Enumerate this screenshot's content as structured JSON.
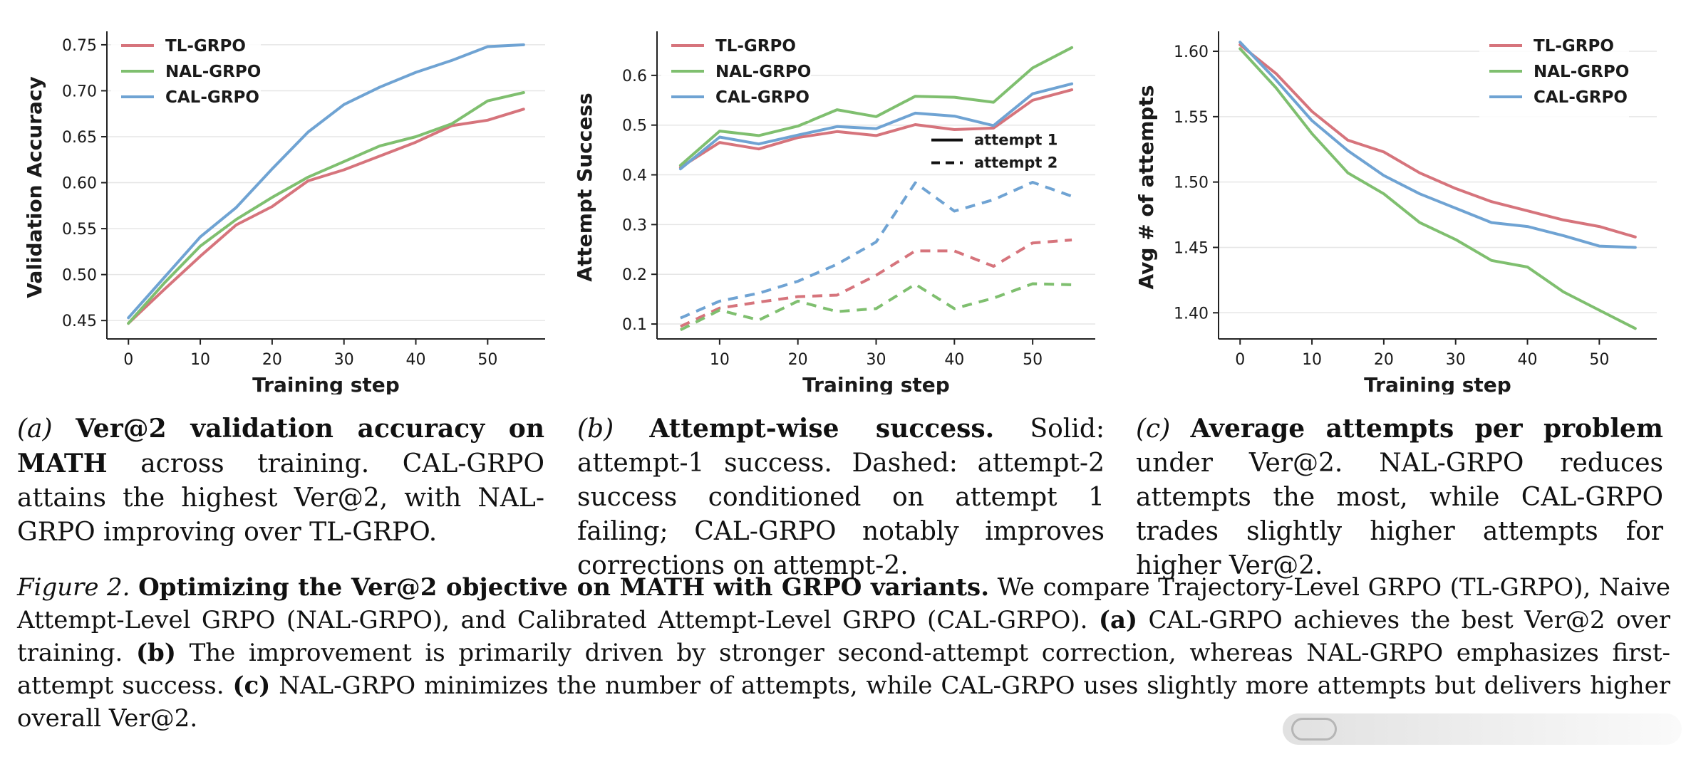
{
  "chart_data": [
    {
      "type": "line",
      "ylabel": "Validation Accuracy",
      "xlabel": "Training step",
      "xlim": [
        -3,
        58
      ],
      "ylim": [
        0.43,
        0.76
      ],
      "xticks": [
        0,
        10,
        20,
        30,
        40,
        50
      ],
      "yticks": [
        0.45,
        0.5,
        0.55,
        0.6,
        0.65,
        0.7,
        0.75
      ],
      "ytick_labels": [
        "0.45",
        "0.50",
        "0.55",
        "0.60",
        "0.65",
        "0.70",
        "0.75"
      ],
      "legend_position": "top-left",
      "x": [
        0,
        5,
        10,
        15,
        20,
        25,
        30,
        35,
        40,
        45,
        50,
        55
      ],
      "series": [
        {
          "name": "TL-GRPO",
          "color": "#d6747c",
          "style": "solid",
          "values": [
            0.447,
            0.484,
            0.52,
            0.554,
            0.574,
            0.602,
            0.614,
            0.629,
            0.644,
            0.662,
            0.668,
            0.68
          ]
        },
        {
          "name": "NAL-GRPO",
          "color": "#7fbf6f",
          "style": "solid",
          "values": [
            0.447,
            0.491,
            0.531,
            0.56,
            0.584,
            0.606,
            0.623,
            0.64,
            0.65,
            0.664,
            0.689,
            0.698
          ]
        },
        {
          "name": "CAL-GRPO",
          "color": "#6fa3d3",
          "style": "solid",
          "values": [
            0.453,
            0.497,
            0.541,
            0.573,
            0.615,
            0.655,
            0.685,
            0.704,
            0.72,
            0.733,
            0.748,
            0.75
          ]
        }
      ]
    },
    {
      "type": "line",
      "ylabel": "Attempt Success",
      "xlabel": "Training step",
      "xlim": [
        2,
        58
      ],
      "ylim": [
        0.07,
        0.68
      ],
      "xticks": [
        10,
        20,
        30,
        40,
        50
      ],
      "yticks": [
        0.1,
        0.2,
        0.3,
        0.4,
        0.5,
        0.6
      ],
      "ytick_labels": [
        "0.1",
        "0.2",
        "0.3",
        "0.4",
        "0.5",
        "0.6"
      ],
      "legend_position": "top-left",
      "style_legend": [
        {
          "label": "attempt 1",
          "style": "solid"
        },
        {
          "label": "attempt 2",
          "style": "dashed"
        }
      ],
      "x": [
        5,
        10,
        15,
        20,
        25,
        30,
        35,
        40,
        45,
        50,
        55
      ],
      "series": [
        {
          "name": "TL-GRPO",
          "color": "#d6747c",
          "style": "solid",
          "values": [
            0.415,
            0.465,
            0.452,
            0.475,
            0.487,
            0.479,
            0.501,
            0.491,
            0.494,
            0.55,
            0.571
          ]
        },
        {
          "name": "NAL-GRPO",
          "color": "#7fbf6f",
          "style": "solid",
          "values": [
            0.419,
            0.488,
            0.479,
            0.498,
            0.531,
            0.517,
            0.558,
            0.556,
            0.546,
            0.615,
            0.656
          ]
        },
        {
          "name": "CAL-GRPO",
          "color": "#6fa3d3",
          "style": "solid",
          "values": [
            0.412,
            0.476,
            0.462,
            0.48,
            0.497,
            0.493,
            0.524,
            0.518,
            0.499,
            0.563,
            0.583
          ]
        },
        {
          "name": "TL-GRPO",
          "color": "#d6747c",
          "style": "dashed",
          "values": [
            0.095,
            0.132,
            0.144,
            0.155,
            0.158,
            0.198,
            0.247,
            0.247,
            0.216,
            0.263,
            0.269
          ]
        },
        {
          "name": "NAL-GRPO",
          "color": "#7fbf6f",
          "style": "dashed",
          "values": [
            0.088,
            0.128,
            0.108,
            0.146,
            0.125,
            0.131,
            0.18,
            0.131,
            0.152,
            0.181,
            0.179
          ]
        },
        {
          "name": "CAL-GRPO",
          "color": "#6fa3d3",
          "style": "dashed",
          "values": [
            0.112,
            0.146,
            0.162,
            0.186,
            0.22,
            0.265,
            0.384,
            0.327,
            0.35,
            0.385,
            0.357
          ]
        }
      ]
    },
    {
      "type": "line",
      "ylabel": "Avg # of attempts",
      "xlabel": "Training step",
      "xlim": [
        -3,
        58
      ],
      "ylim": [
        1.38,
        1.612
      ],
      "xticks": [
        0,
        10,
        20,
        30,
        40,
        50
      ],
      "yticks": [
        1.4,
        1.45,
        1.5,
        1.55,
        1.6
      ],
      "ytick_labels": [
        "1.40",
        "1.45",
        "1.50",
        "1.55",
        "1.60"
      ],
      "legend_position": "top-right",
      "x": [
        0,
        5,
        10,
        15,
        20,
        25,
        30,
        35,
        40,
        45,
        50,
        55
      ],
      "series": [
        {
          "name": "TL-GRPO",
          "color": "#d6747c",
          "style": "solid",
          "values": [
            1.605,
            1.583,
            1.554,
            1.532,
            1.523,
            1.507,
            1.495,
            1.485,
            1.478,
            1.471,
            1.466,
            1.458
          ]
        },
        {
          "name": "NAL-GRPO",
          "color": "#7fbf6f",
          "style": "solid",
          "values": [
            1.602,
            1.572,
            1.537,
            1.507,
            1.491,
            1.469,
            1.456,
            1.44,
            1.435,
            1.416,
            1.402,
            1.388
          ]
        },
        {
          "name": "CAL-GRPO",
          "color": "#6fa3d3",
          "style": "solid",
          "values": [
            1.607,
            1.578,
            1.547,
            1.524,
            1.505,
            1.491,
            1.48,
            1.469,
            1.466,
            1.459,
            1.451,
            1.45
          ]
        }
      ]
    }
  ],
  "captions": {
    "a": {
      "label": "(a)",
      "title": "Ver@2 validation accuracy on MATH",
      "text": "across training.  CAL-GRPO attains the highest Ver@2, with NAL-GRPO improving over TL-GRPO."
    },
    "b": {
      "label": "(b)",
      "title": "Attempt-wise success.",
      "text": "Solid: attempt-1 success. Dashed: attempt-2 success conditioned on attempt 1 failing; CAL-GRPO notably improves corrections on attempt-2."
    },
    "c": {
      "label": "(c)",
      "title": "Average attempts per problem",
      "text": "under Ver@2. NAL-GRPO reduces attempts the most, while CAL-GRPO trades slightly higher attempts for higher Ver@2."
    }
  },
  "figure_caption": {
    "label": "Figure 2.",
    "title": "Optimizing the Ver@2 objective on MATH with GRPO variants.",
    "intro": "We compare Trajectory-Level GRPO (TL-GRPO), Naive Attempt-Level GRPO (NAL-GRPO), and Calibrated Attempt-Level GRPO (CAL-GRPO).",
    "a_marker": "(a)",
    "a_text": "CAL-GRPO achieves the best Ver@2 over training.",
    "b_marker": "(b)",
    "b_text": "The improvement is primarily driven by stronger second-attempt correction, whereas NAL-GRPO emphasizes first-attempt success.",
    "c_marker": "(c)",
    "c_text": "NAL-GRPO minimizes the number of attempts, while CAL-GRPO uses slightly more attempts but delivers higher overall Ver@2."
  }
}
